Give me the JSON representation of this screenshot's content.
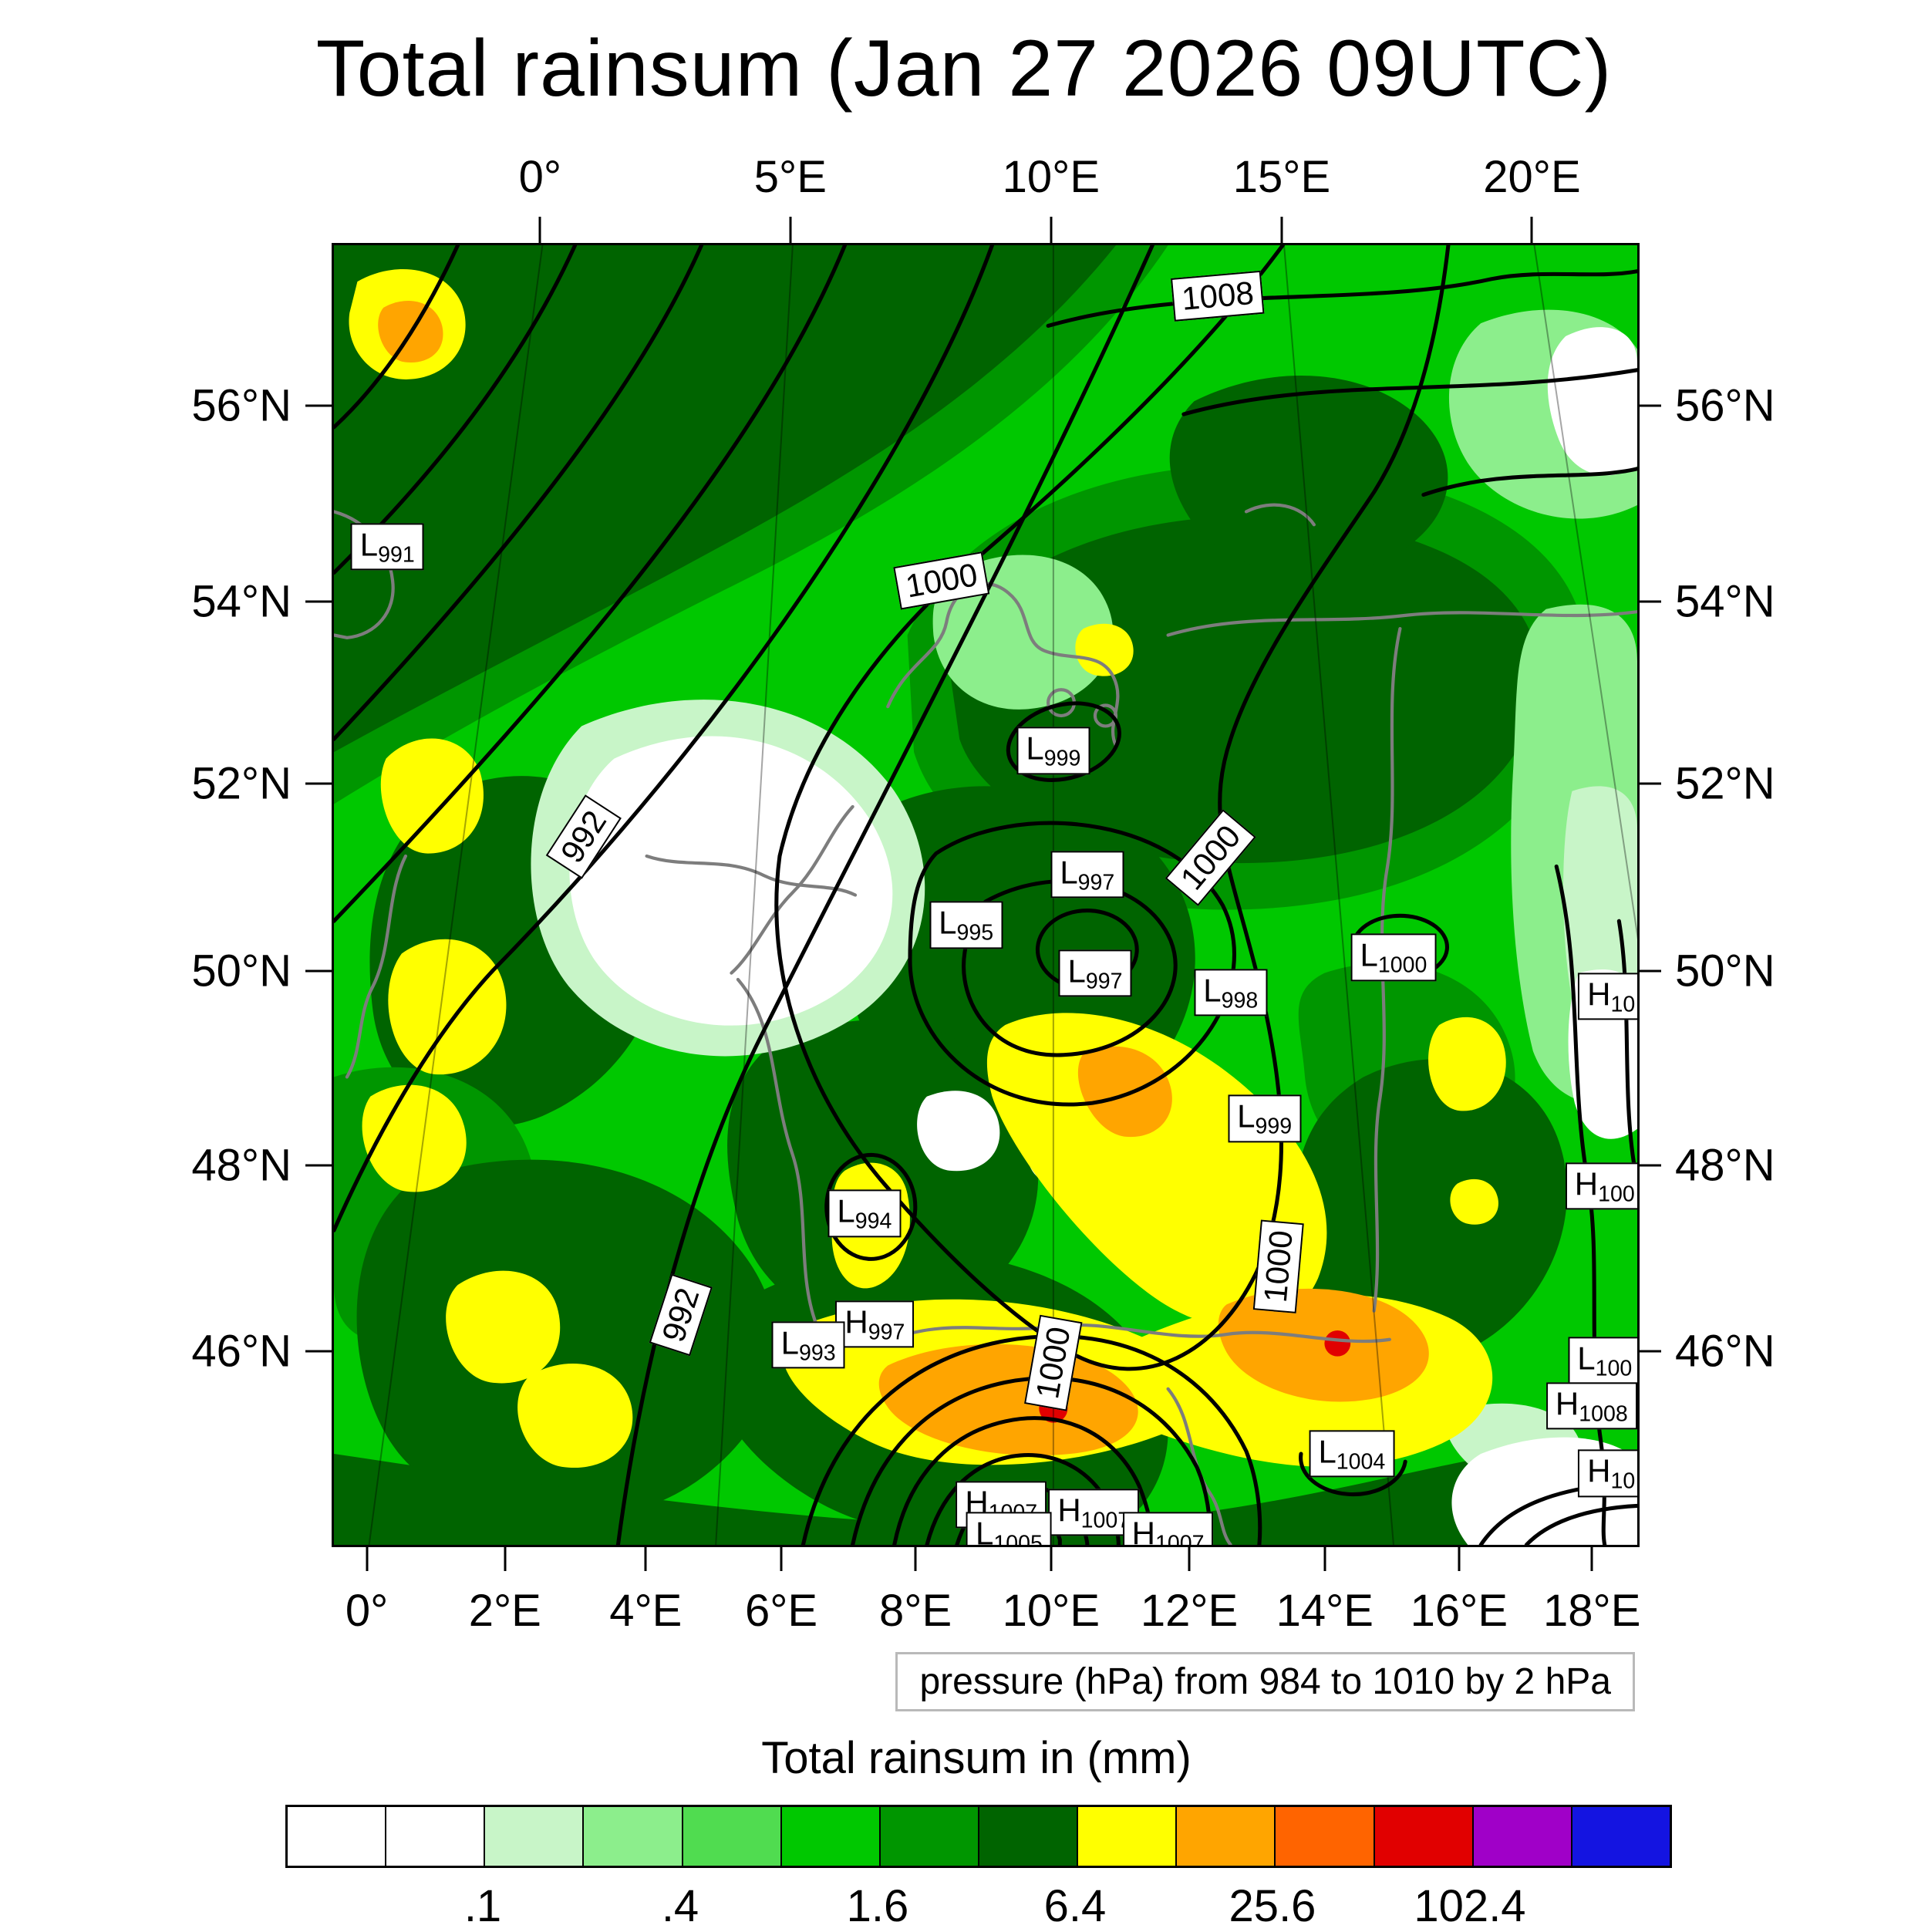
{
  "chart_data": {
    "type": "heatmap",
    "title": "Total rainsum (Jan 27 2026 09UTC)",
    "colorbar": {
      "title": "Total rainsum in (mm)",
      "colors": [
        "#ffffff",
        "#ffffff",
        "#c8f5c8",
        "#8cee8c",
        "#50dc50",
        "#00c800",
        "#009600",
        "#006400",
        "#ffff00",
        "#ffa500",
        "#ff6400",
        "#e10000",
        "#a000c8",
        "#1414e1"
      ],
      "levels": [
        0.1,
        0.2,
        0.4,
        0.8,
        1.6,
        3.2,
        6.4,
        12.8,
        25.6,
        51.2,
        102.4,
        204.8,
        409.6
      ],
      "tick_labels": [
        {
          "label": ".1",
          "b": 2
        },
        {
          "label": ".4",
          "b": 4
        },
        {
          "label": "1.6",
          "b": 6
        },
        {
          "label": "6.4",
          "b": 8
        },
        {
          "label": "25.6",
          "b": 10
        },
        {
          "label": "102.4",
          "b": 12
        }
      ]
    },
    "pressure": {
      "caption": "pressure (hPa) from 984 to 1010 by 2 hPa",
      "min": 984,
      "max": 1010,
      "interval": 2,
      "labeled_isobars": [
        992,
        1000,
        1008
      ]
    },
    "axes": {
      "top": [
        {
          "label": "0°",
          "f": 0.16
        },
        {
          "label": "5°E",
          "f": 0.352
        },
        {
          "label": "10°E",
          "f": 0.552
        },
        {
          "label": "15°E",
          "f": 0.729
        },
        {
          "label": "20°E",
          "f": 0.921
        }
      ],
      "bottom": [
        {
          "label": "0°",
          "f": 0.027
        },
        {
          "label": "2°E",
          "f": 0.133
        },
        {
          "label": "4°E",
          "f": 0.241
        },
        {
          "label": "6°E",
          "f": 0.345
        },
        {
          "label": "8°E",
          "f": 0.448
        },
        {
          "label": "10°E",
          "f": 0.552
        },
        {
          "label": "12°E",
          "f": 0.658
        },
        {
          "label": "14°E",
          "f": 0.762
        },
        {
          "label": "16°E",
          "f": 0.865
        },
        {
          "label": "18°E",
          "f": 0.967
        }
      ],
      "lat": [
        {
          "label": "56°N",
          "f": 0.125
        },
        {
          "label": "54°N",
          "f": 0.276
        },
        {
          "label": "52°N",
          "f": 0.416
        },
        {
          "label": "50°N",
          "f": 0.56
        },
        {
          "label": "48°N",
          "f": 0.71
        },
        {
          "label": "46°N",
          "f": 0.853
        }
      ]
    },
    "pressure_labels": [
      {
        "kind": "isobar",
        "text": "1008",
        "x": 67.8,
        "y": 3.9,
        "rot": -5
      },
      {
        "kind": "isobar",
        "text": "1000",
        "x": 46.6,
        "y": 25.8,
        "rot": -10
      },
      {
        "kind": "L",
        "sub": "991",
        "x": 4.1,
        "y": 23.2
      },
      {
        "kind": "isobar",
        "text": "992",
        "x": 19.2,
        "y": 45.5,
        "rot": -57
      },
      {
        "kind": "L",
        "sub": "999",
        "x": 55.2,
        "y": 38.9
      },
      {
        "kind": "L",
        "sub": "997",
        "x": 57.8,
        "y": 48.4
      },
      {
        "kind": "isobar",
        "text": "1000",
        "x": 67.3,
        "y": 47.1,
        "rot": -50
      },
      {
        "kind": "L",
        "sub": "995",
        "x": 48.5,
        "y": 52.3
      },
      {
        "kind": "L",
        "sub": "997",
        "x": 58.4,
        "y": 56.0
      },
      {
        "kind": "L",
        "sub": "998",
        "x": 68.8,
        "y": 57.5
      },
      {
        "kind": "L",
        "sub": "1000",
        "x": 81.3,
        "y": 54.8
      },
      {
        "kind": "H",
        "sub": "10",
        "x": 98.0,
        "y": 57.8
      },
      {
        "kind": "L",
        "sub": "999",
        "x": 71.4,
        "y": 67.2
      },
      {
        "kind": "H",
        "sub": "100",
        "x": 97.5,
        "y": 72.4
      },
      {
        "kind": "L",
        "sub": "994",
        "x": 40.7,
        "y": 74.5
      },
      {
        "kind": "isobar",
        "text": "1000",
        "x": 72.5,
        "y": 78.6,
        "rot": -85
      },
      {
        "kind": "isobar",
        "text": "992",
        "x": 26.6,
        "y": 82.3,
        "rot": -72
      },
      {
        "kind": "H",
        "sub": "997",
        "x": 41.5,
        "y": 83.0
      },
      {
        "kind": "L",
        "sub": "993",
        "x": 36.4,
        "y": 84.6
      },
      {
        "kind": "isobar",
        "text": "1000",
        "x": 55.2,
        "y": 86.0,
        "rot": -80
      },
      {
        "kind": "L",
        "sub": "100",
        "x": 97.5,
        "y": 85.8
      },
      {
        "kind": "H",
        "sub": "1008",
        "x": 96.5,
        "y": 89.3
      },
      {
        "kind": "L",
        "sub": "1004",
        "x": 78.1,
        "y": 93.0
      },
      {
        "kind": "H",
        "sub": "10",
        "x": 98.0,
        "y": 94.5
      },
      {
        "kind": "H",
        "sub": "1007",
        "x": 51.2,
        "y": 96.9
      },
      {
        "kind": "H",
        "sub": "1007",
        "x": 58.3,
        "y": 97.5
      },
      {
        "kind": "L",
        "sub": "1005",
        "x": 51.8,
        "y": 99.3
      },
      {
        "kind": "H",
        "sub": "1007",
        "x": 64.0,
        "y": 99.3
      }
    ]
  }
}
